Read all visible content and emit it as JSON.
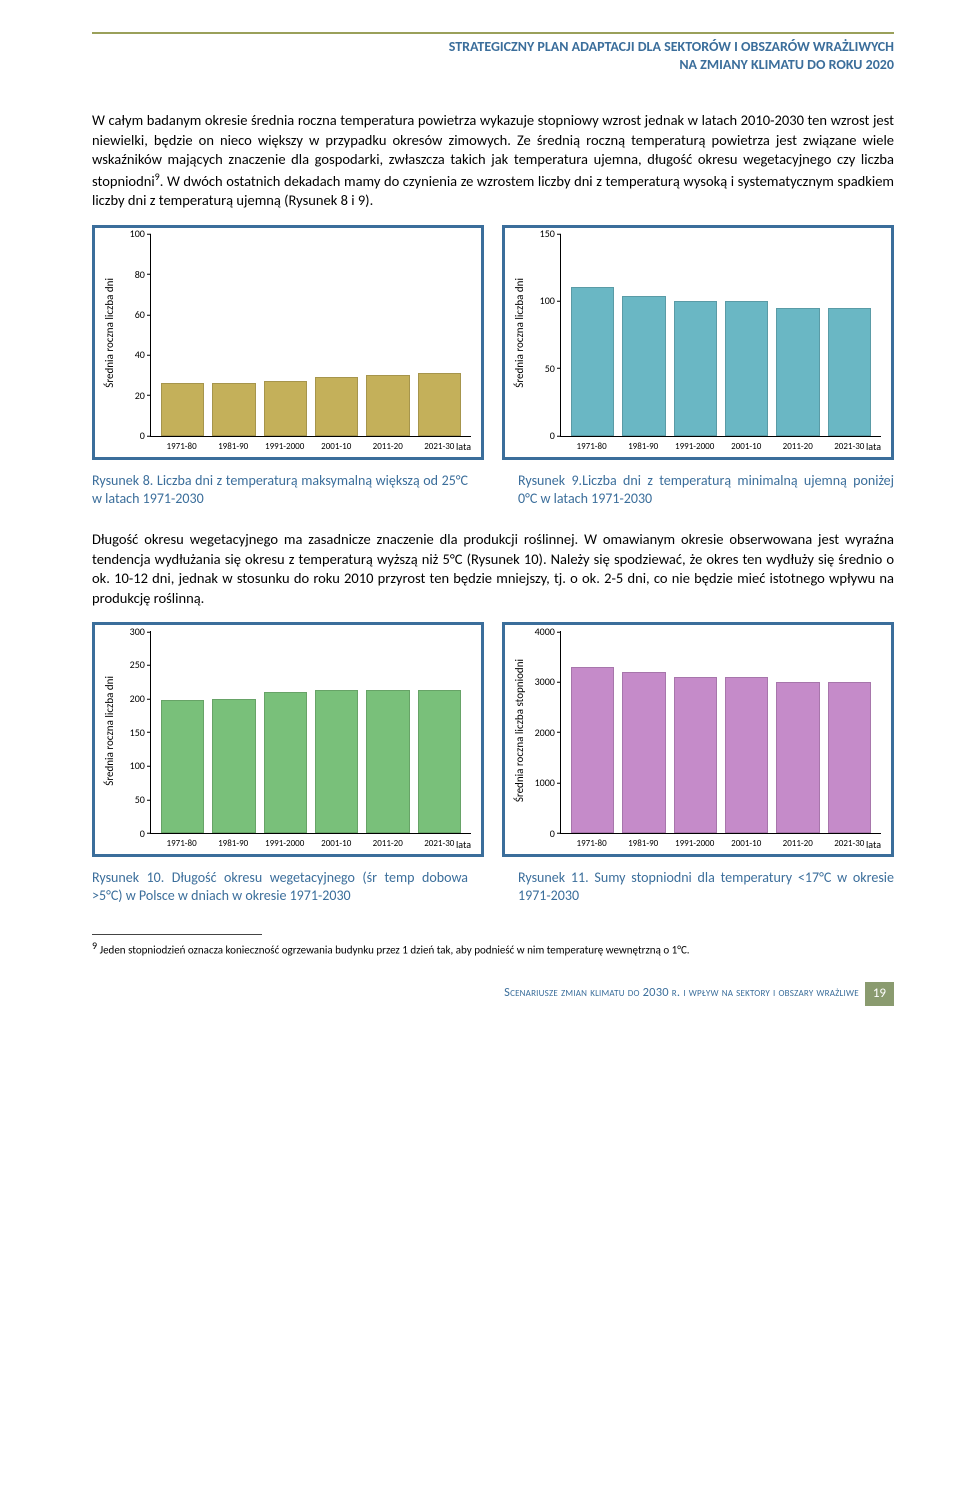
{
  "header": {
    "line1": "STRATEGICZNY PLAN ADAPTACJI DLA SEKTORÓW I OBSZARÓW WRAŻLIWYCH",
    "line2": "NA ZMIANY KLIMATU DO ROKU 2020"
  },
  "para1": "W całym badanym okresie średnia roczna temperatura powietrza wykazuje stopniowy wzrost jednak w latach 2010-2030 ten wzrost jest niewielki, będzie on nieco większy w przypadku okresów zimowych. Ze średnią roczną temperaturą powietrza jest związane wiele wskaźników mających znaczenie dla gospodarki, zwłaszcza takich jak temperatura ujemna, długość okresu wegetacyjnego czy liczba stopniodni",
  "para1_sup": "9",
  "para1_cont": ". W dwóch ostatnich dekadach mamy do czynienia ze wzrostem liczby dni z temperaturą wysoką i systematycznym spadkiem liczby dni z temperaturą ujemną (Rysunek 8 i 9).",
  "chart_categories": [
    "1971-80",
    "1981-90",
    "1991-2000",
    "2001-10",
    "2011-20",
    "2021-30"
  ],
  "chart_xaxis_label": "lata",
  "chart_yaxis_label": "Średnia roczna liczba dni",
  "chart_yaxis_label_stopniodni": "Średnia roczna liczba stopniodni",
  "chart8": {
    "type": "bar",
    "ylim": [
      0,
      100
    ],
    "yticks": [
      0,
      20,
      40,
      60,
      80,
      100
    ],
    "values": [
      26,
      26,
      27,
      29,
      30,
      31
    ],
    "bar_color": "#c4b05a",
    "background_color": "#ffffff"
  },
  "chart9": {
    "type": "bar",
    "ylim": [
      0,
      150
    ],
    "yticks": [
      0,
      50,
      100,
      150
    ],
    "values": [
      110,
      104,
      100,
      100,
      95,
      95
    ],
    "bar_color": "#6ab7c4",
    "background_color": "#ffffff"
  },
  "caption8": "Rysunek 8. Liczba dni z temperaturą maksymalną większą od 25°C w latach 1971-2030",
  "caption9": "Rysunek 9.Liczba dni z temperaturą minimalną ujemną poniżej 0°C w latach 1971-2030",
  "para2": "Długość okresu wegetacyjnego ma zasadnicze znaczenie dla produkcji roślinnej. W omawianym okresie obserwowana jest wyraźna tendencja wydłużania się okresu z temperaturą wyższą niż 5°C (Rysunek 10). Należy się spodziewać, że okres ten wydłuży się średnio o ok. 10-12 dni, jednak w stosunku do roku 2010 przyrost ten będzie mniejszy, tj. o ok. 2-5 dni, co nie będzie mieć istotnego wpływu na produkcję roślinną.",
  "chart10": {
    "type": "bar",
    "ylim": [
      0,
      300
    ],
    "yticks": [
      0,
      50,
      100,
      150,
      200,
      250,
      300
    ],
    "values": [
      198,
      200,
      210,
      213,
      213,
      212
    ],
    "bar_color": "#79c07a",
    "background_color": "#ffffff"
  },
  "chart11": {
    "type": "bar",
    "ylim": [
      0,
      4000
    ],
    "yticks": [
      0,
      1000,
      2000,
      3000,
      4000
    ],
    "values": [
      3300,
      3200,
      3100,
      3100,
      3000,
      3000
    ],
    "bar_color": "#c58bc9",
    "background_color": "#ffffff"
  },
  "caption10": "Rysunek 10. Długość okresu wegetacyjnego (śr temp dobowa >5°C) w Polsce w dniach w okresie 1971-2030",
  "caption11": "Rysunek 11. Sumy stopniodni dla temperatury <17°C w okresie 1971-2030",
  "footnote_marker": "9",
  "footnote_text": " Jeden stopniodzień oznacza konieczność ogrzewania budynku przez 1 dzień tak, aby podnieść w nim temperaturę wewnętrzną o 1°C.",
  "footer_text": "Scenariusze zmian klimatu do 2030 r. i wpływ na sektory i obszary wrażliwe",
  "page_number": "19"
}
